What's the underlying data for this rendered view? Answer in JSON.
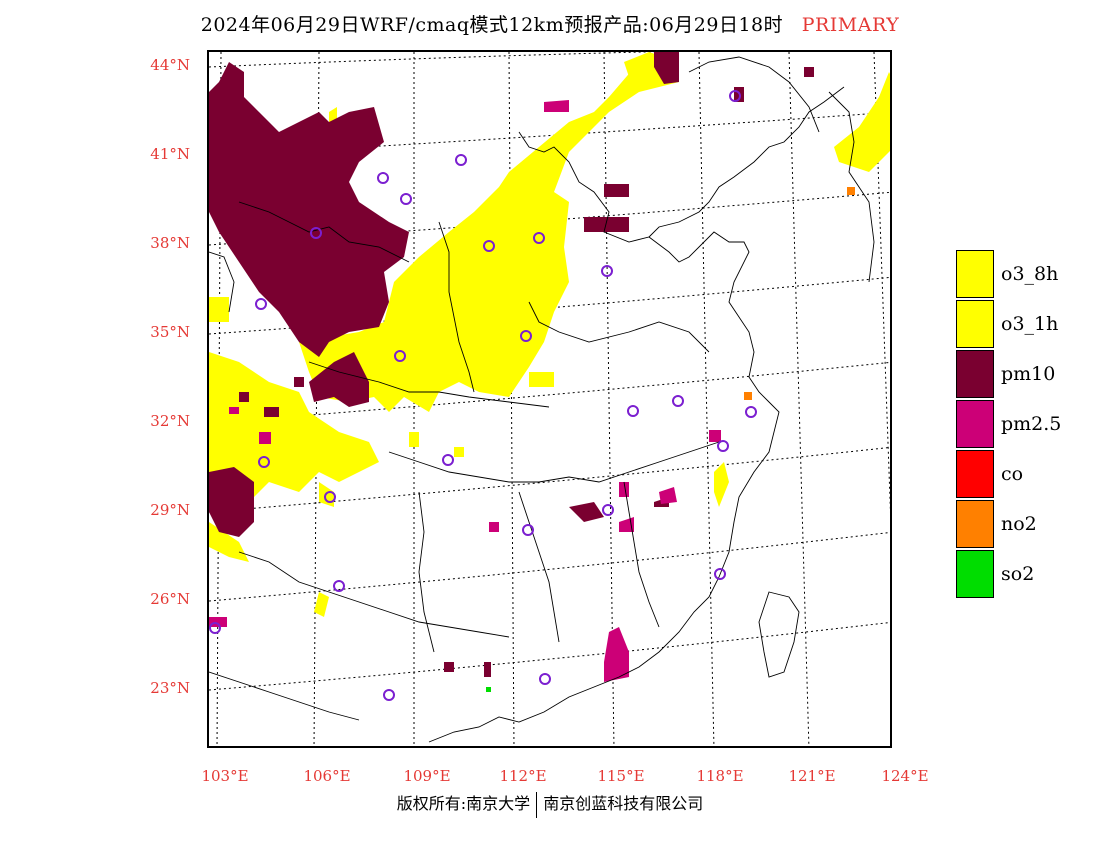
{
  "title": {
    "main": "2024年06月29日WRF/cmaq模式12km预报产品:06月29日18时",
    "tag": "PRIMARY"
  },
  "axes": {
    "lat_labels": [
      "44°N",
      "41°N",
      "38°N",
      "35°N",
      "32°N",
      "29°N",
      "26°N",
      "23°N"
    ],
    "lon_labels": [
      "103°E",
      "106°E",
      "109°E",
      "112°E",
      "115°E",
      "118°E",
      "121°E",
      "124°E"
    ]
  },
  "legend": [
    {
      "label": "o3_8h",
      "color": "#ffff00"
    },
    {
      "label": "o3_1h",
      "color": "#ffff00"
    },
    {
      "label": "pm10",
      "color": "#7a0030"
    },
    {
      "label": "pm2.5",
      "color": "#cc0077"
    },
    {
      "label": "co",
      "color": "#ff0000"
    },
    {
      "label": "no2",
      "color": "#ff8000"
    },
    {
      "label": "so2",
      "color": "#00dd00"
    }
  ],
  "colors": {
    "axis_label": "#e53935",
    "o3": "#ffff00",
    "pm10": "#7a0030",
    "pm25": "#cc0077",
    "no2": "#ff8000",
    "so2": "#00dd00",
    "station": "#7b1fd0"
  },
  "footer": {
    "left": "版权所有:南京大学",
    "right": "南京创蓝科技有限公司"
  }
}
